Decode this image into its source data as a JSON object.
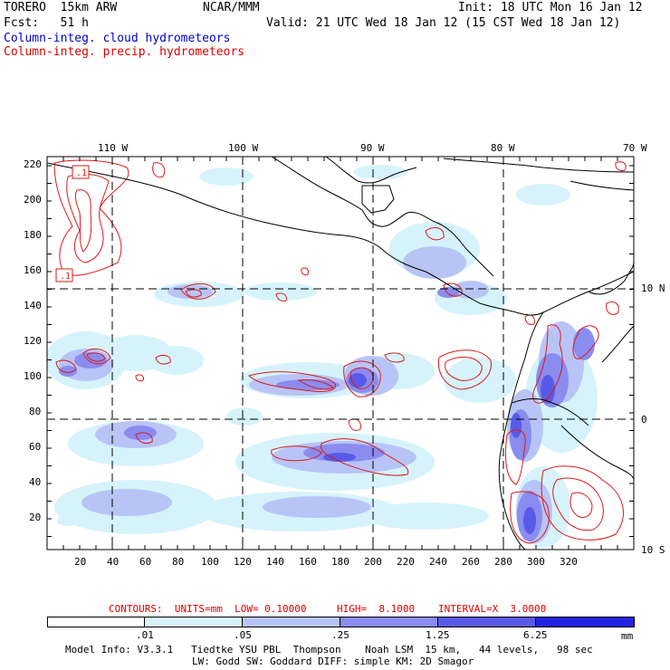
{
  "header": {
    "model": "TORERO  15km ARW",
    "org": "NCAR/MMM",
    "init": "Init: 18 UTC Mon 16 Jan 12",
    "fcst": "Fcst:   51 h",
    "valid": "Valid: 21 UTC Wed 18 Jan 12 (15 CST Wed 18 Jan 12)",
    "field1": "Column-integ. cloud hydrometeors",
    "field2": "Column-integ. precip. hydrometeors"
  },
  "colors": {
    "field1": "#0000cc",
    "field2": "#dd0000",
    "shade1": "#d6f3fb",
    "shade2": "#b8c4f6",
    "shade3": "#8a8cf0",
    "shade4": "#5a5ae8",
    "shade5": "#2222e0",
    "contour": "#dd1a1a",
    "coast": "#000000"
  },
  "map": {
    "lon_labels": [
      "110 W",
      "100 W",
      "90 W",
      "80 W",
      "70 W"
    ],
    "lat_labels": [
      "10 N",
      "0",
      "10 S"
    ],
    "y_ticks": [
      "220",
      "200",
      "180",
      "160",
      "140",
      "120",
      "100",
      "80",
      "60",
      "40",
      "20"
    ],
    "x_ticks": [
      "20",
      "40",
      "60",
      "80",
      "100",
      "120",
      "140",
      "160",
      "180",
      "200",
      "220",
      "240",
      "260",
      "280",
      "300",
      "320"
    ],
    "box_labels": [
      ".1",
      ".1"
    ]
  },
  "contours_line": {
    "label1": "CONTOURS:  UNITS=mm  LOW= 0.10000",
    "label2": "HIGH=  8.1000",
    "label3": "INTERVAL=X  3.0000"
  },
  "colorbar": {
    "labels": [
      ".01",
      ".05",
      ".25",
      "1.25",
      "6.25"
    ],
    "unit": "mm"
  },
  "footer": {
    "line1": "Model Info: V3.3.1   Tiedtke YSU PBL  Thompson    Noah LSM  15 km,   44 levels,   98 sec",
    "line2": "LW: Godd SW: Goddard DIFF: simple KM: 2D Smagor"
  }
}
